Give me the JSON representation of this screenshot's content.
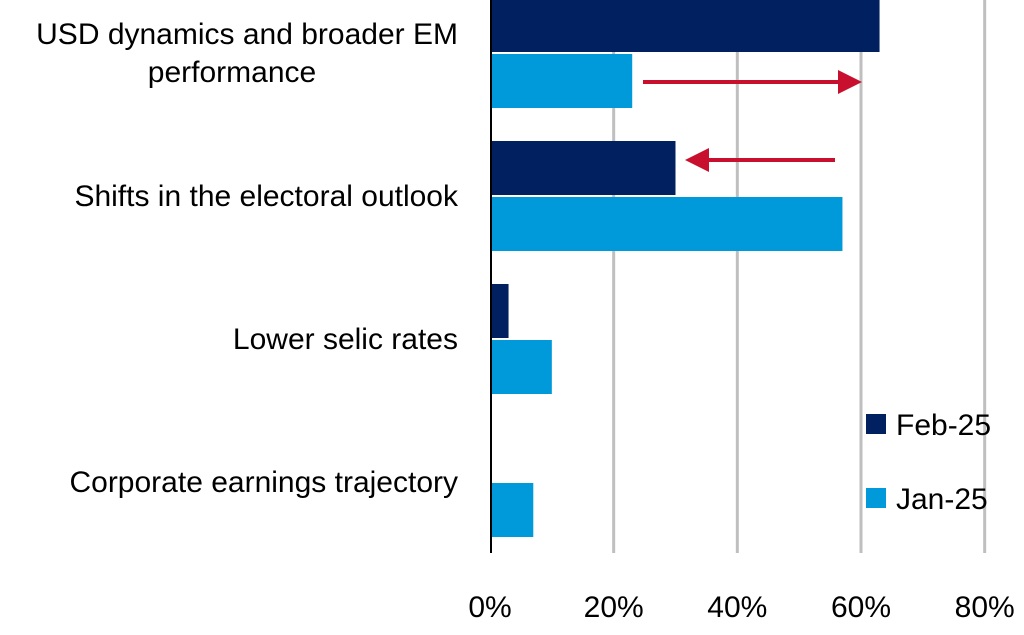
{
  "chart_data": {
    "type": "bar",
    "orientation": "horizontal",
    "categories": [
      [
        "USD dynamics and broader EM",
        "performance"
      ],
      [
        "Shifts in the electoral outlook"
      ],
      [
        "Lower selic rates"
      ],
      [
        "Corporate earnings trajectory"
      ]
    ],
    "series": [
      {
        "name": "Feb-25",
        "color": "#002060",
        "values": [
          63,
          30,
          3,
          0
        ]
      },
      {
        "name": "Jan-25",
        "color": "#009ADA",
        "values": [
          23,
          57,
          10,
          7
        ]
      }
    ],
    "xlim": [
      0,
      80
    ],
    "xticks": [
      0,
      20,
      40,
      60,
      80
    ],
    "xtick_labels": [
      "0%",
      "20%",
      "40%",
      "60%",
      "80%"
    ],
    "grid": "vertical",
    "legend": "bottom-right",
    "annotations": [
      {
        "type": "arrow",
        "category": 0,
        "direction": "right",
        "color": "#C8102E"
      },
      {
        "type": "arrow",
        "category": 1,
        "direction": "left",
        "color": "#C8102E"
      }
    ],
    "title": "",
    "xlabel": "",
    "ylabel": ""
  }
}
